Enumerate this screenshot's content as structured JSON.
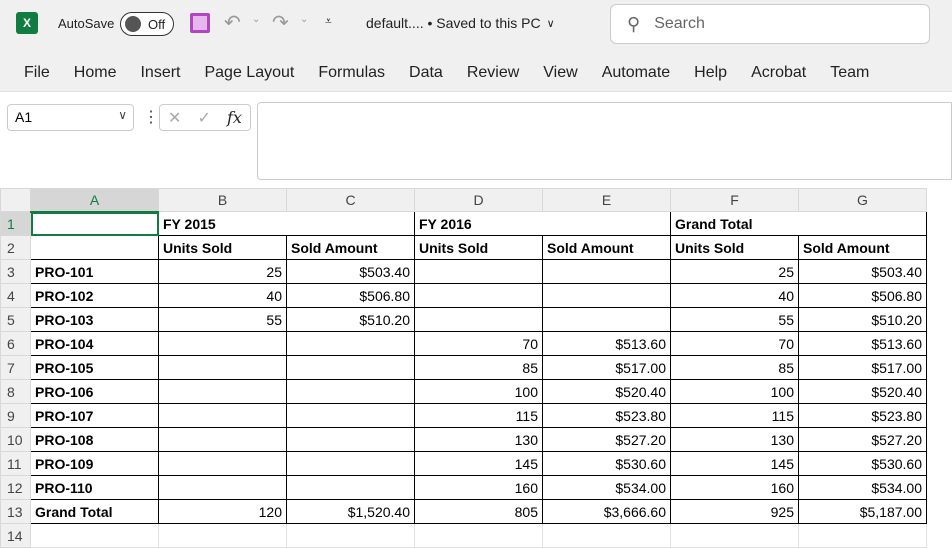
{
  "app": {
    "logo": "X",
    "autosave_label": "AutoSave",
    "autosave_state": "Off",
    "title": "default.... • Saved to this PC",
    "search_placeholder": "Search"
  },
  "tabs": [
    "File",
    "Home",
    "Insert",
    "Page Layout",
    "Formulas",
    "Data",
    "Review",
    "View",
    "Automate",
    "Help",
    "Acrobat",
    "Team"
  ],
  "formula_bar": {
    "name_box": "A1",
    "formula": ""
  },
  "columns": [
    "A",
    "B",
    "C",
    "D",
    "E",
    "F",
    "G"
  ],
  "rows_count": 14,
  "header_row1": [
    "",
    "FY 2015",
    "FY 2016",
    "Grand Total"
  ],
  "data_rows": [
    [
      "",
      "Units Sold",
      "Sold Amount",
      "Units Sold",
      "Sold Amount",
      "Units Sold",
      "Sold Amount"
    ],
    [
      "PRO-101",
      "25",
      "$503.40",
      "",
      "",
      "25",
      "$503.40"
    ],
    [
      "PRO-102",
      "40",
      "$506.80",
      "",
      "",
      "40",
      "$506.80"
    ],
    [
      "PRO-103",
      "55",
      "$510.20",
      "",
      "",
      "55",
      "$510.20"
    ],
    [
      "PRO-104",
      "",
      "",
      "70",
      "$513.60",
      "70",
      "$513.60"
    ],
    [
      "PRO-105",
      "",
      "",
      "85",
      "$517.00",
      "85",
      "$517.00"
    ],
    [
      "PRO-106",
      "",
      "",
      "100",
      "$520.40",
      "100",
      "$520.40"
    ],
    [
      "PRO-107",
      "",
      "",
      "115",
      "$523.80",
      "115",
      "$523.80"
    ],
    [
      "PRO-108",
      "",
      "",
      "130",
      "$527.20",
      "130",
      "$527.20"
    ],
    [
      "PRO-109",
      "",
      "",
      "145",
      "$530.60",
      "145",
      "$530.60"
    ],
    [
      "PRO-110",
      "",
      "",
      "160",
      "$534.00",
      "160",
      "$534.00"
    ],
    [
      "Grand Total",
      "120",
      "$1,520.40",
      "805",
      "$3,666.60",
      "925",
      "$5,187.00"
    ]
  ]
}
